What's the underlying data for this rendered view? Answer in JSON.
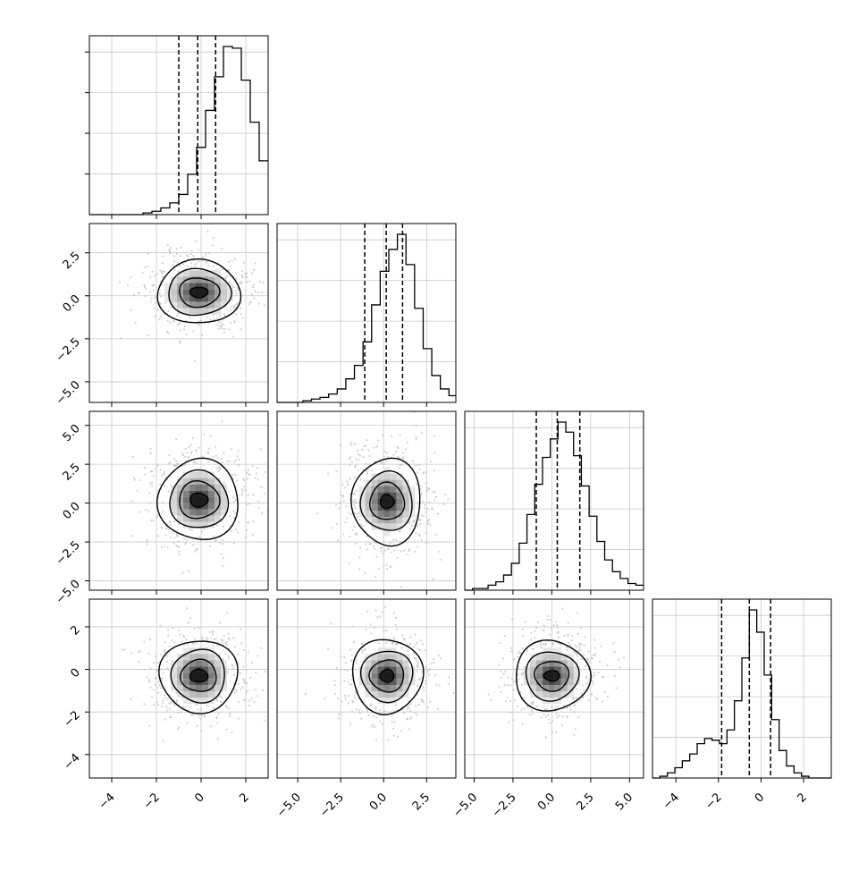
{
  "chart_data": {
    "type": "corner",
    "parameters": 4,
    "grid": true,
    "colors": {
      "hist": "#000000",
      "contour": "#000000",
      "points": "#bdbdbd",
      "grid": "#c8c8c8"
    },
    "ranges": [
      [
        -5,
        3
      ],
      [
        -6.2,
        4.2
      ],
      [
        -5.6,
        5.9
      ],
      [
        -5.1,
        3.3
      ]
    ],
    "ticks": [
      {
        "values": [
          -4,
          -2,
          0,
          2
        ],
        "labels": [
          "−4",
          "−2",
          "0",
          "2"
        ]
      },
      {
        "values": [
          -5,
          -2.5,
          0,
          2.5
        ],
        "labels": [
          "−5.0",
          "−2.5",
          "0.0",
          "2.5"
        ]
      },
      {
        "values": [
          -5,
          -2.5,
          0,
          2.5,
          5
        ],
        "labels": [
          "−5.0",
          "−2.5",
          "0.0",
          "2.5",
          "5.0"
        ]
      },
      {
        "values": [
          -4,
          -2,
          0,
          2
        ],
        "labels": [
          "−4",
          "−2",
          "0",
          "2"
        ]
      }
    ],
    "histograms": [
      {
        "quantiles": [
          -1.0,
          -0.15,
          0.65
        ],
        "edges_start": -5,
        "bin_width": 0.4,
        "counts": [
          0,
          0,
          0,
          0,
          0,
          0,
          1,
          2,
          4,
          7,
          12,
          24,
          40,
          62,
          82,
          100,
          99,
          80,
          55,
          32,
          17,
          8,
          4,
          2,
          1,
          0,
          0,
          0,
          0
        ]
      },
      {
        "quantiles": [
          -1.1,
          0.15,
          1.1
        ],
        "edges_start": -6.2,
        "bin_width": 0.5,
        "counts": [
          0,
          0,
          0,
          1,
          2,
          3,
          5,
          8,
          14,
          22,
          36,
          58,
          78,
          91,
          100,
          82,
          56,
          32,
          16,
          8,
          4,
          2,
          1,
          0,
          0
        ]
      },
      {
        "quantiles": [
          -1.0,
          0.35,
          1.8
        ],
        "edges_start": -5.6,
        "bin_width": 0.5,
        "counts": [
          0,
          1,
          1,
          3,
          5,
          9,
          16,
          28,
          45,
          63,
          79,
          90,
          100,
          94,
          80,
          62,
          44,
          29,
          18,
          11,
          7,
          4,
          3,
          1
        ]
      },
      {
        "quantiles": [
          -1.85,
          -0.55,
          0.45
        ],
        "edges_start": -5.1,
        "bin_width": 0.35,
        "counts": [
          0,
          1,
          3,
          6,
          10,
          14,
          20,
          23,
          22,
          20,
          28,
          45,
          70,
          98,
          85,
          60,
          34,
          16,
          7,
          3,
          1,
          0,
          0,
          0
        ]
      }
    ],
    "pairs": [
      {
        "x": 0,
        "y": 1,
        "center": [
          -0.1,
          0.2
        ],
        "contours": [
          [
            0.4,
            0.3
          ],
          [
            0.9,
            0.85
          ],
          [
            1.4,
            1.35
          ],
          [
            1.85,
            1.85
          ]
        ]
      },
      {
        "x": 0,
        "y": 2,
        "center": [
          -0.1,
          0.2
        ],
        "contours": [
          [
            0.4,
            0.45
          ],
          [
            0.9,
            1.2
          ],
          [
            1.3,
            1.85
          ],
          [
            1.8,
            2.6
          ]
        ]
      },
      {
        "x": 1,
        "y": 2,
        "center": [
          0.2,
          0.1
        ],
        "contours": [
          [
            0.4,
            0.45
          ],
          [
            1.0,
            1.2
          ],
          [
            1.5,
            1.9
          ],
          [
            2.0,
            2.8
          ]
        ]
      },
      {
        "x": 0,
        "y": 3,
        "center": [
          -0.1,
          -0.3
        ],
        "contours": [
          [
            0.4,
            0.3
          ],
          [
            0.8,
            0.75
          ],
          [
            1.2,
            1.25
          ],
          [
            1.75,
            1.7
          ]
        ]
      },
      {
        "x": 1,
        "y": 3,
        "center": [
          0.2,
          -0.3
        ],
        "contours": [
          [
            0.4,
            0.3
          ],
          [
            1.0,
            0.75
          ],
          [
            1.5,
            1.2
          ],
          [
            2.05,
            1.75
          ]
        ]
      },
      {
        "x": 2,
        "y": 3,
        "center": [
          0.0,
          -0.3
        ],
        "contours": [
          [
            0.5,
            0.25
          ],
          [
            1.1,
            0.7
          ],
          [
            1.7,
            1.15
          ],
          [
            2.4,
            1.65
          ]
        ]
      }
    ]
  }
}
